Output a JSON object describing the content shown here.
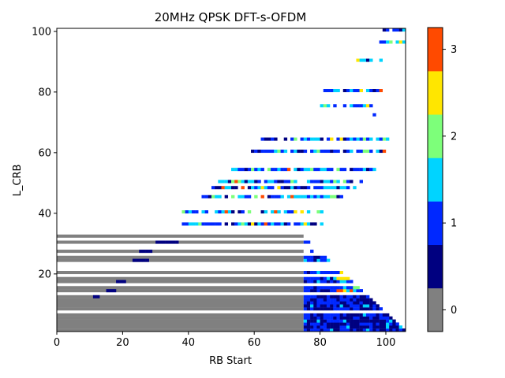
{
  "chart_data": {
    "type": "heatmap",
    "title": "20MHz QPSK DFT-s-OFDM",
    "xlabel": "RB Start",
    "ylabel": "L_CRB",
    "xlim": [
      0,
      106
    ],
    "ylim": [
      1,
      101
    ],
    "x_ticks": [
      "0",
      "20",
      "40",
      "60",
      "80",
      "100"
    ],
    "y_ticks": [
      "20",
      "40",
      "60",
      "80",
      "100"
    ],
    "n_rb": 106,
    "colorbar": {
      "levels": [
        0,
        0.5,
        1,
        1.5,
        2,
        2.5,
        3
      ],
      "colors": [
        "#808080",
        "#000080",
        "#0028ff",
        "#00d4ff",
        "#7dff7a",
        "#ffe600",
        "#ff4a00"
      ],
      "tick_labels": [
        "0",
        "1",
        "2",
        "3"
      ]
    },
    "gray_region_max_start": 75,
    "row_segments": [
      {
        "L": 1,
        "start": 0,
        "end": 74,
        "value": 0
      },
      {
        "L": 2,
        "start": 0,
        "end": 74,
        "value": 0
      },
      {
        "L": 3,
        "start": 0,
        "end": 74,
        "value": 0
      },
      {
        "L": 4,
        "start": 0,
        "end": 74,
        "value": 0
      },
      {
        "L": 5,
        "start": 0,
        "end": 74,
        "value": 0
      },
      {
        "L": 6,
        "start": 0,
        "end": 74,
        "value": 0
      },
      {
        "L": 8,
        "start": 0,
        "end": 74,
        "value": 0
      },
      {
        "L": 9,
        "start": 0,
        "end": 74,
        "value": 0
      },
      {
        "L": 10,
        "start": 0,
        "end": 74,
        "value": 0
      },
      {
        "L": 11,
        "start": 0,
        "end": 74,
        "value": 0
      },
      {
        "L": 12,
        "start": 0,
        "end": 74,
        "value": 0
      },
      {
        "L": 14,
        "start": 0,
        "end": 74,
        "value": 0
      },
      {
        "L": 15,
        "start": 0,
        "end": 74,
        "value": 0
      },
      {
        "L": 17,
        "start": 0,
        "end": 74,
        "value": 0
      },
      {
        "L": 18,
        "start": 0,
        "end": 74,
        "value": 0
      },
      {
        "L": 20,
        "start": 0,
        "end": 74,
        "value": 0
      },
      {
        "L": 24,
        "start": 0,
        "end": 74,
        "value": 0
      },
      {
        "L": 25,
        "start": 0,
        "end": 74,
        "value": 0
      },
      {
        "L": 27,
        "start": 0,
        "end": 74,
        "value": 0
      },
      {
        "L": 30,
        "start": 0,
        "end": 74,
        "value": 0
      },
      {
        "L": 32,
        "start": 0,
        "end": 74,
        "value": 0
      }
    ],
    "blue_rows": [
      1,
      2,
      3,
      4,
      5,
      6,
      8,
      9,
      10,
      11,
      12
    ],
    "mixed_rows": [
      14,
      15,
      17,
      18,
      20,
      24,
      25,
      27,
      30,
      32
    ],
    "upper_rows": [
      {
        "L": 36,
        "start": 38,
        "end": 81
      },
      {
        "L": 40,
        "start": 38,
        "end": 80
      },
      {
        "L": 45,
        "start": 44,
        "end": 86
      },
      {
        "L": 48,
        "start": 47,
        "end": 90
      },
      {
        "L": 50,
        "start": 49,
        "end": 92
      },
      {
        "L": 54,
        "start": 53,
        "end": 96
      },
      {
        "L": 60,
        "start": 59,
        "end": 99
      },
      {
        "L": 64,
        "start": 62,
        "end": 100
      },
      {
        "L": 72,
        "start": 95,
        "end": 96
      },
      {
        "L": 75,
        "start": 79,
        "end": 95
      },
      {
        "L": 80,
        "start": 79,
        "end": 100
      },
      {
        "L": 90,
        "start": 91,
        "end": 98
      },
      {
        "L": 96,
        "start": 98,
        "end": 105
      },
      {
        "L": 100,
        "start": 99,
        "end": 105
      }
    ]
  }
}
